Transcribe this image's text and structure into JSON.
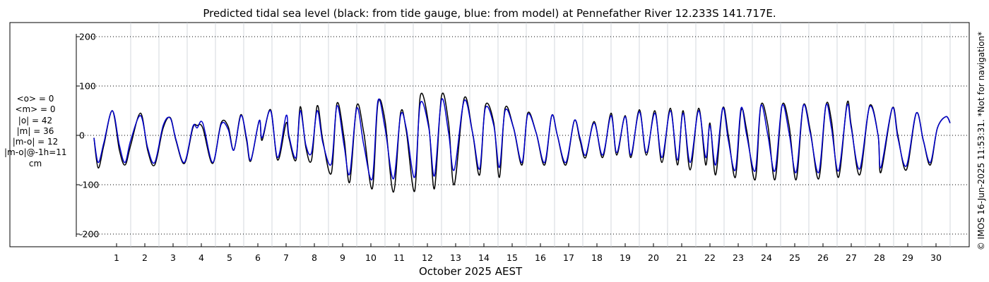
{
  "chart_data": {
    "type": "line",
    "title": "Predicted tidal sea level (black: from tide gauge, blue: from model) at Pennefather River 12.233S 141.717E.",
    "xlabel": "October 2025 AEST",
    "ylabel": "",
    "x_unit": "day of October 2025",
    "xlim": [
      -0.6,
      31.2
    ],
    "ylim": [
      -230,
      230
    ],
    "yticks": [
      -200,
      -100,
      0,
      100,
      200
    ],
    "xticks": [
      1,
      2,
      3,
      4,
      5,
      6,
      7,
      8,
      9,
      10,
      11,
      12,
      13,
      14,
      15,
      16,
      17,
      18,
      19,
      20,
      21,
      22,
      23,
      24,
      25,
      26,
      27,
      28,
      29,
      30
    ],
    "grid": true,
    "series": [
      {
        "name": "tide gauge",
        "color": "#000000",
        "columns": [
          "day",
          "level_cm"
        ],
        "points": [
          [
            0.2,
            -5
          ],
          [
            0.35,
            -66
          ],
          [
            0.55,
            -20
          ],
          [
            0.85,
            50
          ],
          [
            1.1,
            -30
          ],
          [
            1.3,
            -60
          ],
          [
            1.5,
            -20
          ],
          [
            1.85,
            45
          ],
          [
            2.1,
            -30
          ],
          [
            2.35,
            -60
          ],
          [
            2.65,
            15
          ],
          [
            2.9,
            36
          ],
          [
            3.1,
            -10
          ],
          [
            3.4,
            -57
          ],
          [
            3.7,
            15
          ],
          [
            3.85,
            20
          ],
          [
            4.05,
            15
          ],
          [
            4.4,
            -57
          ],
          [
            4.7,
            25
          ],
          [
            4.95,
            18
          ],
          [
            5.15,
            -30
          ],
          [
            5.4,
            42
          ],
          [
            5.6,
            -10
          ],
          [
            5.75,
            -52
          ],
          [
            6.05,
            30
          ],
          [
            6.15,
            -10
          ],
          [
            6.45,
            52
          ],
          [
            6.7,
            -50
          ],
          [
            7.0,
            25
          ],
          [
            7.1,
            -5
          ],
          [
            7.35,
            -50
          ],
          [
            7.5,
            58
          ],
          [
            7.7,
            -25
          ],
          [
            7.9,
            -50
          ],
          [
            8.1,
            60
          ],
          [
            8.3,
            -10
          ],
          [
            8.6,
            -77
          ],
          [
            8.8,
            65
          ],
          [
            9.05,
            -5
          ],
          [
            9.25,
            -95
          ],
          [
            9.5,
            60
          ],
          [
            9.75,
            5
          ],
          [
            10.05,
            -108
          ],
          [
            10.25,
            65
          ],
          [
            10.5,
            30
          ],
          [
            10.8,
            -115
          ],
          [
            11.05,
            45
          ],
          [
            11.25,
            10
          ],
          [
            11.55,
            -113
          ],
          [
            11.75,
            80
          ],
          [
            12.05,
            20
          ],
          [
            12.25,
            -108
          ],
          [
            12.5,
            80
          ],
          [
            12.75,
            25
          ],
          [
            12.95,
            -100
          ],
          [
            13.3,
            75
          ],
          [
            13.6,
            5
          ],
          [
            13.85,
            -80
          ],
          [
            14.05,
            60
          ],
          [
            14.35,
            25
          ],
          [
            14.55,
            -85
          ],
          [
            14.75,
            55
          ],
          [
            15.05,
            15
          ],
          [
            15.35,
            -60
          ],
          [
            15.55,
            45
          ],
          [
            15.85,
            5
          ],
          [
            16.15,
            -60
          ],
          [
            16.4,
            40
          ],
          [
            16.6,
            0
          ],
          [
            16.9,
            -60
          ],
          [
            17.2,
            30
          ],
          [
            17.4,
            -10
          ],
          [
            17.6,
            -45
          ],
          [
            17.9,
            28
          ],
          [
            18.2,
            -45
          ],
          [
            18.5,
            45
          ],
          [
            18.7,
            -40
          ],
          [
            19.0,
            40
          ],
          [
            19.2,
            -45
          ],
          [
            19.5,
            52
          ],
          [
            19.75,
            -40
          ],
          [
            20.05,
            50
          ],
          [
            20.3,
            -55
          ],
          [
            20.6,
            55
          ],
          [
            20.85,
            -60
          ],
          [
            21.05,
            50
          ],
          [
            21.3,
            -70
          ],
          [
            21.6,
            55
          ],
          [
            21.85,
            -60
          ],
          [
            22.0,
            25
          ],
          [
            22.2,
            -80
          ],
          [
            22.45,
            55
          ],
          [
            22.65,
            0
          ],
          [
            22.9,
            -85
          ],
          [
            23.1,
            50
          ],
          [
            23.3,
            10
          ],
          [
            23.6,
            -90
          ],
          [
            23.8,
            60
          ],
          [
            24.05,
            20
          ],
          [
            24.3,
            -90
          ],
          [
            24.55,
            60
          ],
          [
            24.8,
            20
          ],
          [
            25.05,
            -90
          ],
          [
            25.3,
            60
          ],
          [
            25.55,
            10
          ],
          [
            25.85,
            -88
          ],
          [
            26.1,
            60
          ],
          [
            26.3,
            30
          ],
          [
            26.55,
            -85
          ],
          [
            26.85,
            65
          ],
          [
            27.0,
            20
          ],
          [
            27.3,
            -80
          ],
          [
            27.65,
            60
          ],
          [
            27.95,
            0
          ],
          [
            28.05,
            -75
          ],
          [
            28.45,
            55
          ],
          [
            28.65,
            0
          ],
          [
            28.95,
            -70
          ],
          [
            29.3,
            45
          ],
          [
            29.55,
            -10
          ],
          [
            29.8,
            -60
          ],
          [
            30.05,
            15
          ],
          [
            30.35,
            38
          ],
          [
            30.5,
            25
          ]
        ]
      },
      {
        "name": "model",
        "color": "#0000cc",
        "columns": [
          "day",
          "level_cm"
        ],
        "points": [
          [
            0.2,
            -5
          ],
          [
            0.35,
            -55
          ],
          [
            0.55,
            -15
          ],
          [
            0.85,
            50
          ],
          [
            1.1,
            -20
          ],
          [
            1.3,
            -55
          ],
          [
            1.5,
            -10
          ],
          [
            1.85,
            40
          ],
          [
            2.1,
            -25
          ],
          [
            2.35,
            -55
          ],
          [
            2.65,
            20
          ],
          [
            2.9,
            35
          ],
          [
            3.1,
            -8
          ],
          [
            3.4,
            -55
          ],
          [
            3.7,
            18
          ],
          [
            3.85,
            15
          ],
          [
            4.05,
            25
          ],
          [
            4.4,
            -55
          ],
          [
            4.7,
            22
          ],
          [
            4.95,
            12
          ],
          [
            5.15,
            -30
          ],
          [
            5.4,
            40
          ],
          [
            5.6,
            -5
          ],
          [
            5.75,
            -50
          ],
          [
            6.05,
            30
          ],
          [
            6.15,
            -5
          ],
          [
            6.45,
            50
          ],
          [
            6.7,
            -45
          ],
          [
            7.0,
            40
          ],
          [
            7.1,
            0
          ],
          [
            7.35,
            -45
          ],
          [
            7.5,
            50
          ],
          [
            7.7,
            -20
          ],
          [
            7.9,
            -35
          ],
          [
            8.1,
            50
          ],
          [
            8.3,
            -15
          ],
          [
            8.6,
            -58
          ],
          [
            8.8,
            60
          ],
          [
            9.05,
            -20
          ],
          [
            9.25,
            -78
          ],
          [
            9.5,
            55
          ],
          [
            9.75,
            -20
          ],
          [
            10.05,
            -88
          ],
          [
            10.25,
            70
          ],
          [
            10.5,
            15
          ],
          [
            10.8,
            -88
          ],
          [
            11.05,
            40
          ],
          [
            11.25,
            15
          ],
          [
            11.55,
            -85
          ],
          [
            11.75,
            65
          ],
          [
            12.05,
            15
          ],
          [
            12.25,
            -82
          ],
          [
            12.5,
            72
          ],
          [
            12.75,
            5
          ],
          [
            12.95,
            -70
          ],
          [
            13.3,
            70
          ],
          [
            13.6,
            5
          ],
          [
            13.85,
            -68
          ],
          [
            14.05,
            55
          ],
          [
            14.35,
            20
          ],
          [
            14.55,
            -65
          ],
          [
            14.75,
            50
          ],
          [
            15.05,
            15
          ],
          [
            15.35,
            -55
          ],
          [
            15.55,
            42
          ],
          [
            15.85,
            5
          ],
          [
            16.15,
            -55
          ],
          [
            16.4,
            40
          ],
          [
            16.6,
            0
          ],
          [
            16.9,
            -55
          ],
          [
            17.2,
            30
          ],
          [
            17.4,
            -5
          ],
          [
            17.6,
            -40
          ],
          [
            17.9,
            25
          ],
          [
            18.2,
            -40
          ],
          [
            18.5,
            40
          ],
          [
            18.7,
            -35
          ],
          [
            19.0,
            38
          ],
          [
            19.2,
            -40
          ],
          [
            19.5,
            48
          ],
          [
            19.75,
            -35
          ],
          [
            20.05,
            45
          ],
          [
            20.3,
            -45
          ],
          [
            20.6,
            50
          ],
          [
            20.85,
            -50
          ],
          [
            21.05,
            45
          ],
          [
            21.3,
            -55
          ],
          [
            21.6,
            50
          ],
          [
            21.85,
            -45
          ],
          [
            22.0,
            20
          ],
          [
            22.2,
            -60
          ],
          [
            22.45,
            55
          ],
          [
            22.65,
            -10
          ],
          [
            22.9,
            -70
          ],
          [
            23.1,
            55
          ],
          [
            23.3,
            0
          ],
          [
            23.6,
            -72
          ],
          [
            23.8,
            60
          ],
          [
            24.05,
            0
          ],
          [
            24.3,
            -72
          ],
          [
            24.55,
            60
          ],
          [
            24.8,
            5
          ],
          [
            25.05,
            -75
          ],
          [
            25.3,
            60
          ],
          [
            25.55,
            5
          ],
          [
            25.85,
            -75
          ],
          [
            26.1,
            60
          ],
          [
            26.3,
            15
          ],
          [
            26.55,
            -72
          ],
          [
            26.85,
            60
          ],
          [
            27.0,
            15
          ],
          [
            27.3,
            -68
          ],
          [
            27.65,
            58
          ],
          [
            27.95,
            0
          ],
          [
            28.05,
            -65
          ],
          [
            28.45,
            55
          ],
          [
            28.65,
            -5
          ],
          [
            28.95,
            -62
          ],
          [
            29.3,
            45
          ],
          [
            29.55,
            -10
          ],
          [
            29.8,
            -55
          ],
          [
            30.05,
            15
          ],
          [
            30.35,
            38
          ],
          [
            30.5,
            25
          ]
        ]
      }
    ],
    "stats": {
      "o_mean": "<o> = 0",
      "m_mean": "<m> = 0",
      "o_abs": "|o| = 42",
      "m_abs": "|m| = 36",
      "mo_abs": "|m-o| = 12",
      "mo_lag": "|m-o|@-1h=11",
      "unit": "cm"
    },
    "credit": "© IMOS 16-Jun-2025 11:53:31.  *Not for navigation*"
  }
}
